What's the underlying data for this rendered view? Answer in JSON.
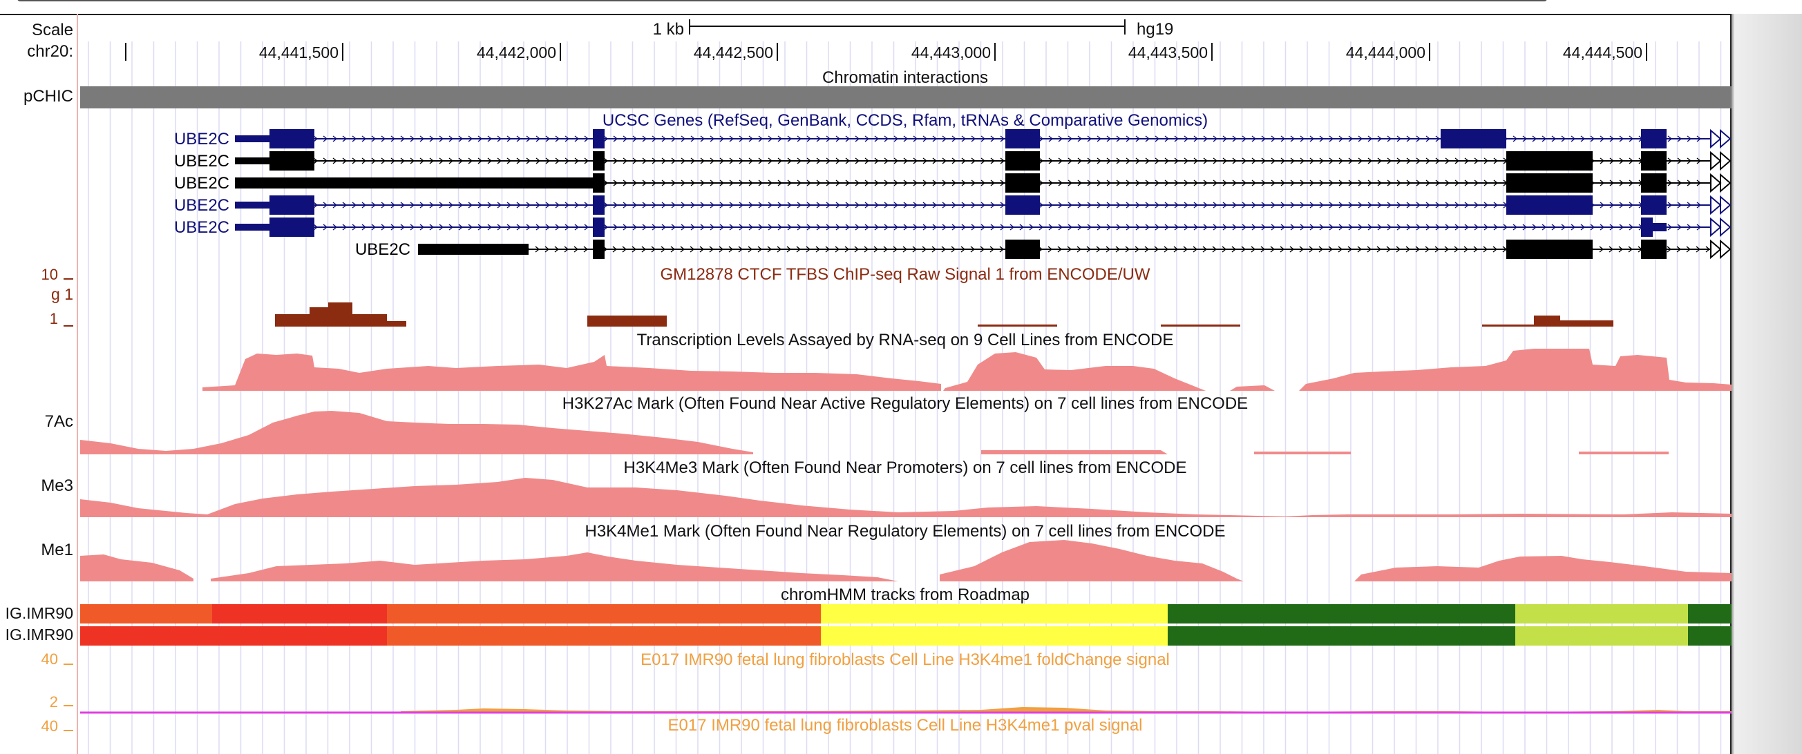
{
  "browser": {
    "scale_label": "Scale",
    "chrom_label": "chr20:",
    "scale_bar_label": "1 kb",
    "assembly": "hg19",
    "positions": [
      "44,441,500",
      "44,442,000",
      "44,442,500",
      "44,443,000",
      "44,443,500",
      "44,444,000",
      "44,444,500"
    ]
  },
  "tracks": {
    "chromatin": {
      "title": "Chromatin interactions",
      "side_label": "pCHIC",
      "color": "#7a7a7a"
    },
    "genes": {
      "title": "UCSC Genes (RefSeq, GenBank, CCDS, Rfam, tRNAs & Comparative Genomics)",
      "names": [
        "UBE2C",
        "UBE2C",
        "UBE2C",
        "UBE2C",
        "UBE2C",
        "UBE2C"
      ],
      "colors": [
        "#10107a",
        "#000000",
        "#000000",
        "#10107a",
        "#10107a",
        "#000000"
      ]
    },
    "ctcf": {
      "title": "GM12878 CTCF TFBS ChIP-seq Raw Signal 1 from ENCODE/UW",
      "side_label": "g 1",
      "axis_top": "10",
      "axis_bottom": "1",
      "color": "#8b2b10"
    },
    "rnaseq": {
      "title": "Transcription Levels Assayed by RNA-seq on 9 Cell Lines from ENCODE",
      "color": "#f08a8a"
    },
    "h3k27ac": {
      "title": "H3K27Ac Mark (Often Found Near Active Regulatory Elements) on 7 cell lines from ENCODE",
      "side_label": "7Ac"
    },
    "h3k4me3": {
      "title": "H3K4Me3 Mark (Often Found Near Promoters) on 7 cell lines from ENCODE",
      "side_label": "Me3"
    },
    "h3k4me1": {
      "title": "H3K4Me1 Mark (Often Found Near Regulatory Elements) on 7 cell lines from ENCODE",
      "side_label": "Me1"
    },
    "chromhmm": {
      "title": "chromHMM tracks from Roadmap",
      "side_labels": [
        "IG.IMR90",
        "IG.IMR90"
      ],
      "colors": [
        "#f05a28",
        "#ee3325",
        "#ffff44",
        "#216b16",
        "#c4e048"
      ]
    },
    "foldchange": {
      "title": "E017 IMR90 fetal lung fibroblasts Cell Line H3K4me1 foldChange signal",
      "axis_top": "40",
      "axis_bottom": "2",
      "color": "#f0a040",
      "baseline_color": "#e040e0"
    },
    "pval": {
      "title": "E017 IMR90 fetal lung fibroblasts Cell Line H3K4me1 pval signal",
      "axis_top": "40",
      "color": "#f0a040"
    }
  }
}
